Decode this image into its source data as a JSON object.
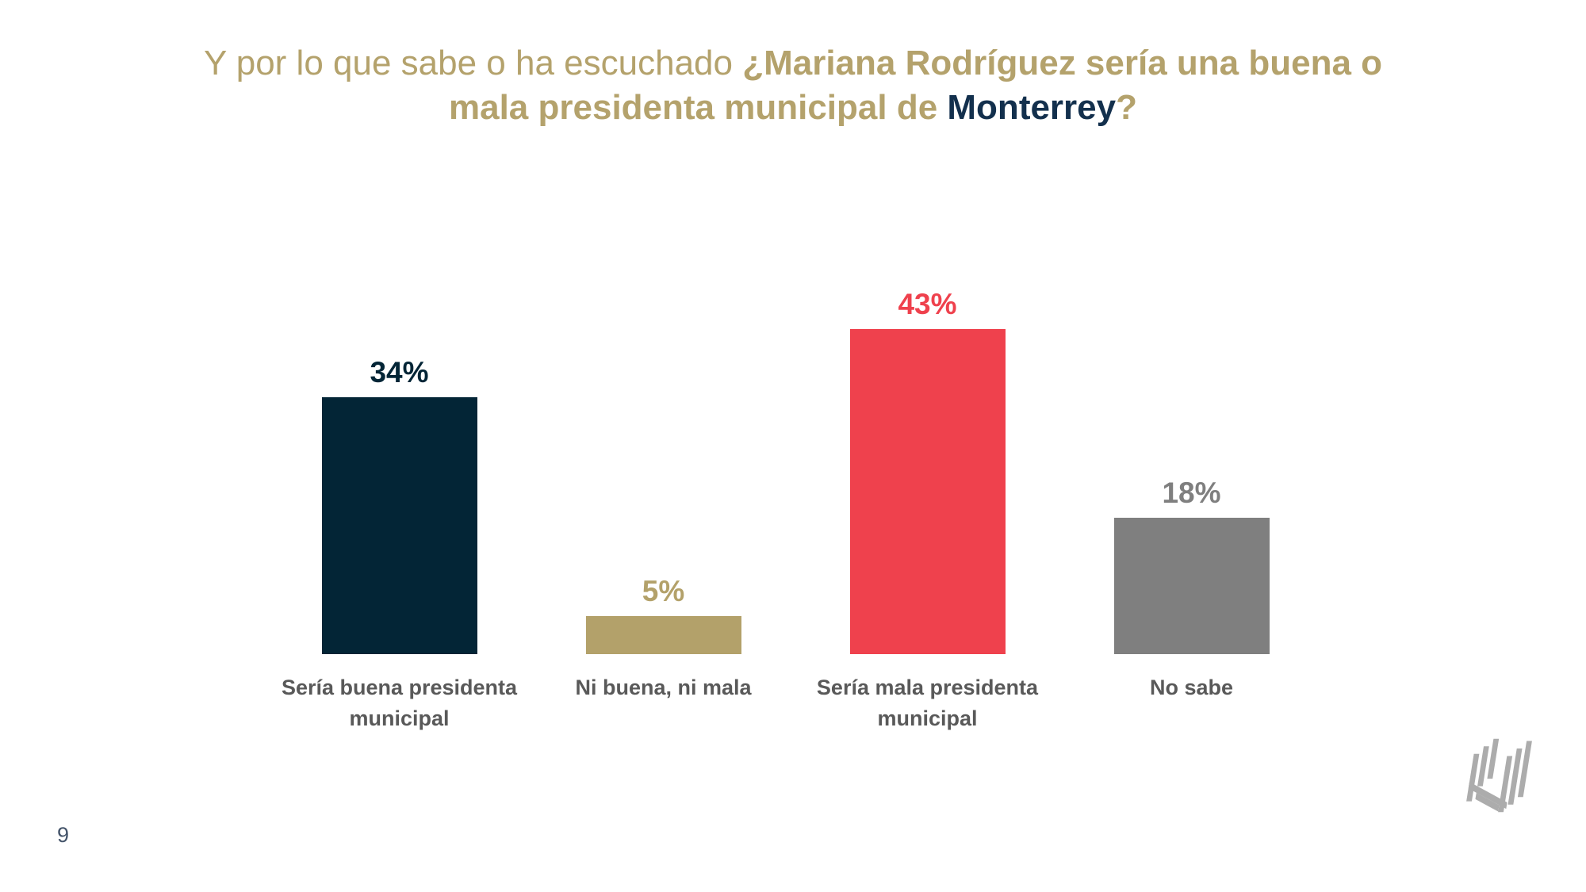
{
  "slide": {
    "page_number": "9"
  },
  "title": {
    "seg_regular": "Y por lo que sabe o ha escuchado ",
    "seg_bold_line1": "¿Mariana Rodríguez sería una buena o",
    "seg_bold_line2": "mala presidenta municipal de ",
    "seg_brand": "Monterrey",
    "seg_question": "?"
  },
  "colors": {
    "gold": "#B4A26C",
    "navy": "#13304D",
    "category": "#595959",
    "page": "#44546A",
    "logo": "#ACACAC",
    "bg": "#FFFFFF"
  },
  "chart_data": {
    "type": "bar",
    "title": "Y por lo que sabe o ha escuchado ¿Mariana Rodríguez sería una buena o mala presidenta municipal de Monterrey?",
    "categories": [
      "Sería buena presidenta municipal",
      "Ni buena, ni mala",
      "Sería mala presidenta municipal",
      "No sabe"
    ],
    "category_lines": [
      [
        "Sería buena presidenta",
        "municipal"
      ],
      [
        "Ni buena, ni mala"
      ],
      [
        "Sería mala presidenta",
        "municipal"
      ],
      [
        "No sabe"
      ]
    ],
    "values": [
      34,
      5,
      43,
      18
    ],
    "value_labels": [
      "34%",
      "5%",
      "43%",
      "18%"
    ],
    "bar_colors": [
      "#032536",
      "#B3A16A",
      "#EF414D",
      "#7F7F7F"
    ],
    "unit": "%",
    "xlabel": "",
    "ylabel": "",
    "ylim": [
      0,
      47
    ],
    "grid": false,
    "legend": false,
    "axes_visible": false,
    "value_label_position": "above-bar"
  }
}
